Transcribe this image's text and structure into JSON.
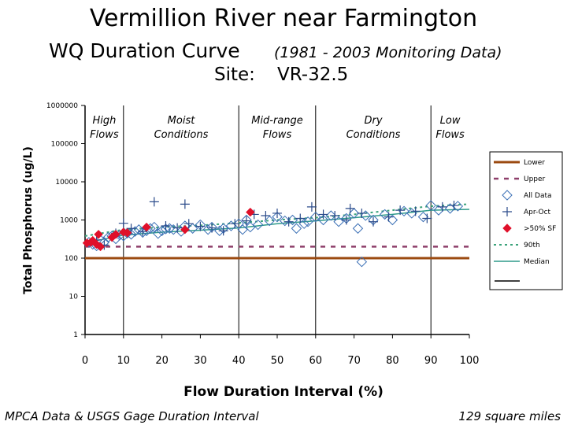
{
  "title": "Vermillion River near Farmington",
  "subtitle": "WQ Duration Curve",
  "period": "(1981 - 2003 Monitoring Data)",
  "site_label": "Site:",
  "site_value": "VR-32.5",
  "footer_left": "MPCA Data & USGS Gage Duration Interval",
  "footer_right": "129 square miles",
  "colors": {
    "lower": "#9B4A10",
    "upper": "#8E3F6A",
    "all_data": "#3A6FB5",
    "apr_oct": "#2A4A8A",
    "sf50": "#E0102A",
    "p90": "#3AA27A",
    "median": "#2E9A8A"
  },
  "chart_data": {
    "type": "scatter",
    "title": "Vermillion River near Farmington",
    "xlabel": "Flow Duration Interval (%)",
    "ylabel": "Total Phosphorus (ug/L)",
    "xlim": [
      0,
      100
    ],
    "ylim": [
      1,
      1000000
    ],
    "y_scale": "log",
    "x_ticks": [
      "0",
      "10",
      "20",
      "30",
      "40",
      "50",
      "60",
      "70",
      "80",
      "90",
      "100"
    ],
    "y_ticks": [
      "1",
      "10",
      "100",
      "1000",
      "10000",
      "100000",
      "1000000"
    ],
    "zones": [
      {
        "label": "High Flows",
        "x_center": 5
      },
      {
        "label": "Moist Conditions",
        "x_center": 25
      },
      {
        "label": "Mid-range Flows",
        "x_center": 50
      },
      {
        "label": "Dry Conditions",
        "x_center": 75
      },
      {
        "label": "Low Flows",
        "x_center": 95
      }
    ],
    "zone_boundaries": [
      10,
      40,
      60,
      90
    ],
    "legend_placement": "right",
    "legend": [
      "Lower",
      "Upper",
      "All Data",
      "Apr-Oct",
      ">50% SF",
      "90th",
      "Median"
    ],
    "series": [
      {
        "name": "Lower",
        "kind": "line",
        "points": [
          [
            0,
            100
          ],
          [
            100,
            100
          ]
        ]
      },
      {
        "name": "Upper",
        "kind": "line",
        "points": [
          [
            0,
            200
          ],
          [
            100,
            200
          ]
        ]
      },
      {
        "name": "90th",
        "kind": "line",
        "points": [
          [
            0,
            380
          ],
          [
            10,
            560
          ],
          [
            20,
            650
          ],
          [
            30,
            720
          ],
          [
            40,
            840
          ],
          [
            50,
            1000
          ],
          [
            60,
            1150
          ],
          [
            70,
            1400
          ],
          [
            80,
            1800
          ],
          [
            90,
            2300
          ],
          [
            100,
            2600
          ]
        ]
      },
      {
        "name": "Median",
        "kind": "line",
        "points": [
          [
            0,
            250
          ],
          [
            10,
            400
          ],
          [
            20,
            480
          ],
          [
            30,
            540
          ],
          [
            40,
            620
          ],
          [
            50,
            800
          ],
          [
            60,
            950
          ],
          [
            70,
            1150
          ],
          [
            80,
            1400
          ],
          [
            90,
            1800
          ],
          [
            100,
            1900
          ]
        ]
      },
      {
        "name": "All Data",
        "kind": "marker",
        "points": [
          [
            1,
            260
          ],
          [
            2,
            230
          ],
          [
            3,
            210
          ],
          [
            4,
            300
          ],
          [
            5,
            260
          ],
          [
            6,
            350
          ],
          [
            7,
            380
          ],
          [
            8,
            320
          ],
          [
            9,
            400
          ],
          [
            10,
            380
          ],
          [
            11,
            450
          ],
          [
            12,
            420
          ],
          [
            13,
            500
          ],
          [
            14,
            560
          ],
          [
            15,
            470
          ],
          [
            16,
            520
          ],
          [
            17,
            600
          ],
          [
            18,
            650
          ],
          [
            19,
            440
          ],
          [
            20,
            520
          ],
          [
            21,
            580
          ],
          [
            22,
            600
          ],
          [
            23,
            560
          ],
          [
            25,
            500
          ],
          [
            26,
            700
          ],
          [
            28,
            600
          ],
          [
            30,
            750
          ],
          [
            32,
            560
          ],
          [
            33,
            650
          ],
          [
            35,
            520
          ],
          [
            36,
            600
          ],
          [
            38,
            700
          ],
          [
            40,
            800
          ],
          [
            41,
            560
          ],
          [
            42,
            1000
          ],
          [
            43,
            650
          ],
          [
            45,
            750
          ],
          [
            48,
            950
          ],
          [
            50,
            1200
          ],
          [
            52,
            950
          ],
          [
            54,
            1000
          ],
          [
            55,
            600
          ],
          [
            57,
            800
          ],
          [
            58,
            900
          ],
          [
            60,
            1200
          ],
          [
            62,
            1000
          ],
          [
            64,
            1300
          ],
          [
            66,
            900
          ],
          [
            68,
            1100
          ],
          [
            70,
            1500
          ],
          [
            71,
            600
          ],
          [
            72,
            80
          ],
          [
            73,
            1300
          ],
          [
            75,
            1000
          ],
          [
            78,
            1400
          ],
          [
            80,
            1000
          ],
          [
            83,
            1700
          ],
          [
            85,
            1500
          ],
          [
            88,
            1200
          ],
          [
            90,
            2400
          ],
          [
            92,
            1800
          ],
          [
            95,
            2000
          ],
          [
            97,
            2300
          ]
        ]
      },
      {
        "name": "Apr-Oct",
        "kind": "marker",
        "points": [
          [
            3,
            300
          ],
          [
            5,
            220
          ],
          [
            8,
            450
          ],
          [
            10,
            820
          ],
          [
            12,
            600
          ],
          [
            15,
            500
          ],
          [
            18,
            3000
          ],
          [
            21,
            700
          ],
          [
            24,
            620
          ],
          [
            26,
            2600
          ],
          [
            27,
            800
          ],
          [
            30,
            680
          ],
          [
            33,
            620
          ],
          [
            36,
            520
          ],
          [
            39,
            800
          ],
          [
            42,
            950
          ],
          [
            44,
            1400
          ],
          [
            47,
            1300
          ],
          [
            50,
            1500
          ],
          [
            53,
            900
          ],
          [
            56,
            1100
          ],
          [
            59,
            2200
          ],
          [
            62,
            1400
          ],
          [
            65,
            1300
          ],
          [
            68,
            1000
          ],
          [
            69,
            2000
          ],
          [
            72,
            1500
          ],
          [
            75,
            900
          ],
          [
            79,
            1200
          ],
          [
            82,
            1800
          ],
          [
            86,
            1700
          ],
          [
            89,
            1100
          ],
          [
            93,
            2200
          ],
          [
            96,
            2400
          ]
        ]
      },
      {
        "name": ">50% SF",
        "kind": "marker",
        "points": [
          [
            0.5,
            250
          ],
          [
            1.5,
            260
          ],
          [
            2,
            290
          ],
          [
            3,
            230
          ],
          [
            3.5,
            420
          ],
          [
            4,
            200
          ],
          [
            7,
            350
          ],
          [
            8,
            420
          ],
          [
            10,
            480
          ],
          [
            11,
            460
          ],
          [
            16,
            650
          ],
          [
            26,
            560
          ],
          [
            43,
            1600
          ]
        ]
      }
    ]
  }
}
